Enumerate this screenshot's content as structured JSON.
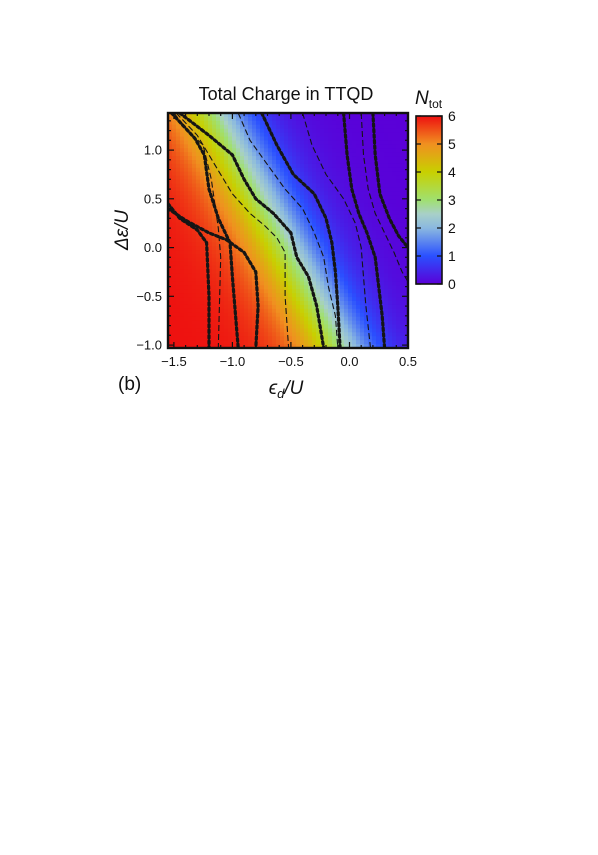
{
  "chart_data": {
    "type": "heatmap",
    "title": "Total Charge  in  TTQD",
    "panel_label": "(b)",
    "xlabel": "ϵd/U",
    "xlabel_main": "ϵ",
    "xlabel_sub": "d",
    "xlabel_tail": "/U",
    "ylabel": "Δε/U",
    "xlim": [
      -1.55,
      0.5
    ],
    "ylim": [
      -1.03,
      1.38
    ],
    "x_ticks": [
      -1.5,
      -1.0,
      -0.5,
      0.0,
      0.5
    ],
    "x_tick_labels": [
      "−1.5",
      "−1.0",
      "−0.5",
      "0.0",
      "0.5"
    ],
    "y_ticks": [
      -1.0,
      -0.5,
      0.0,
      0.5,
      1.0
    ],
    "y_tick_labels": [
      "−1.0",
      "−0.5",
      "0.0",
      "0.5",
      "1.0"
    ],
    "colorbar": {
      "label": "Ntot",
      "label_main": "N",
      "label_sub": "tot",
      "range": [
        0,
        6
      ],
      "ticks": [
        0,
        1,
        2,
        3,
        4,
        5,
        6
      ],
      "tick_labels": [
        "0",
        "1",
        "2",
        "3",
        "4",
        "5",
        "6"
      ]
    },
    "colors": {
      "0": "#5a00d8",
      "1": "#2a50ff",
      "2": "#8ab8e0",
      "2.5": "#a8d0c8",
      "3": "#a0e070",
      "4": "#c8d000",
      "5": "#f09020",
      "6": "#ee1010"
    },
    "contours": [
      {
        "level": 5.5,
        "style": "thick",
        "points": [
          [
            -1.55,
            0.45
          ],
          [
            -1.45,
            0.3
          ],
          [
            -1.3,
            0.18
          ],
          [
            -1.22,
            0.05
          ],
          [
            -1.2,
            -0.5
          ],
          [
            -1.2,
            -1.03
          ]
        ]
      },
      {
        "level": 5.5,
        "style": "thick",
        "points": [
          [
            -1.52,
            1.38
          ],
          [
            -1.42,
            1.25
          ],
          [
            -1.32,
            1.12
          ],
          [
            -1.24,
            0.95
          ],
          [
            -1.2,
            0.6
          ],
          [
            -1.12,
            0.3
          ],
          [
            -1.02,
            0.05
          ],
          [
            -1.0,
            -0.3
          ],
          [
            -0.95,
            -1.03
          ]
        ]
      },
      {
        "level": 5.0,
        "style": "thin",
        "points": [
          [
            -1.5,
            1.38
          ],
          [
            -1.38,
            1.2
          ],
          [
            -1.25,
            1.05
          ],
          [
            -1.18,
            0.7
          ],
          [
            -1.12,
            0.2
          ],
          [
            -1.1,
            -0.1
          ],
          [
            -1.12,
            -1.03
          ]
        ]
      },
      {
        "level": 4.5,
        "style": "thick",
        "points": [
          [
            -1.55,
            0.4
          ],
          [
            -1.4,
            0.28
          ],
          [
            -1.2,
            0.15
          ],
          [
            -1.05,
            0.08
          ],
          [
            -0.9,
            -0.05
          ],
          [
            -0.8,
            -0.25
          ],
          [
            -0.78,
            -0.6
          ],
          [
            -0.8,
            -1.03
          ]
        ]
      },
      {
        "level": 4.0,
        "style": "thin",
        "points": [
          [
            -1.48,
            1.38
          ],
          [
            -1.3,
            1.15
          ],
          [
            -1.15,
            0.85
          ],
          [
            -1.0,
            0.55
          ],
          [
            -0.85,
            0.35
          ],
          [
            -0.72,
            0.22
          ],
          [
            -0.62,
            0.1
          ],
          [
            -0.55,
            -0.05
          ],
          [
            -0.55,
            -0.5
          ],
          [
            -0.52,
            -1.03
          ]
        ]
      },
      {
        "level": 3.5,
        "style": "thick",
        "points": [
          [
            -1.45,
            1.38
          ],
          [
            -1.2,
            1.15
          ],
          [
            -1.0,
            0.95
          ],
          [
            -0.9,
            0.7
          ],
          [
            -0.8,
            0.5
          ],
          [
            -0.65,
            0.35
          ],
          [
            -0.5,
            0.15
          ],
          [
            -0.45,
            -0.1
          ],
          [
            -0.35,
            -0.3
          ],
          [
            -0.28,
            -0.6
          ],
          [
            -0.22,
            -1.03
          ]
        ]
      },
      {
        "level": 3.0,
        "style": "thin",
        "points": [
          [
            -0.95,
            1.38
          ],
          [
            -0.85,
            1.1
          ],
          [
            -0.7,
            0.85
          ],
          [
            -0.55,
            0.6
          ],
          [
            -0.4,
            0.4
          ],
          [
            -0.3,
            0.15
          ],
          [
            -0.22,
            -0.1
          ],
          [
            -0.18,
            -0.4
          ],
          [
            -0.12,
            -0.7
          ],
          [
            -0.1,
            -1.03
          ]
        ]
      },
      {
        "level": 2.5,
        "style": "thick",
        "points": [
          [
            -0.75,
            1.38
          ],
          [
            -0.62,
            1.05
          ],
          [
            -0.48,
            0.75
          ],
          [
            -0.3,
            0.55
          ],
          [
            -0.2,
            0.3
          ],
          [
            -0.15,
            0.05
          ],
          [
            -0.12,
            -0.25
          ],
          [
            -0.1,
            -0.6
          ],
          [
            -0.08,
            -1.03
          ]
        ]
      },
      {
        "level": 2.0,
        "style": "thin",
        "points": [
          [
            -0.4,
            1.38
          ],
          [
            -0.32,
            1.05
          ],
          [
            -0.2,
            0.75
          ],
          [
            -0.05,
            0.5
          ],
          [
            0.05,
            0.25
          ],
          [
            0.1,
            0.0
          ],
          [
            0.12,
            -0.3
          ],
          [
            0.14,
            -0.6
          ],
          [
            0.18,
            -1.03
          ]
        ]
      },
      {
        "level": 1.5,
        "style": "thick",
        "points": [
          [
            -0.05,
            1.38
          ],
          [
            -0.02,
            0.95
          ],
          [
            0.02,
            0.6
          ],
          [
            0.08,
            0.35
          ],
          [
            0.15,
            0.15
          ],
          [
            0.22,
            -0.1
          ],
          [
            0.25,
            -0.4
          ],
          [
            0.28,
            -0.7
          ],
          [
            0.3,
            -1.03
          ]
        ]
      },
      {
        "level": 1.0,
        "style": "thin",
        "points": [
          [
            0.1,
            1.38
          ],
          [
            0.12,
            0.95
          ],
          [
            0.16,
            0.6
          ],
          [
            0.22,
            0.35
          ],
          [
            0.3,
            0.15
          ],
          [
            0.38,
            -0.05
          ],
          [
            0.45,
            -0.25
          ],
          [
            0.5,
            -0.35
          ]
        ]
      },
      {
        "level": 0.5,
        "style": "thick",
        "points": [
          [
            0.2,
            1.38
          ],
          [
            0.22,
            0.95
          ],
          [
            0.26,
            0.55
          ],
          [
            0.34,
            0.3
          ],
          [
            0.42,
            0.12
          ],
          [
            0.5,
            0.0
          ]
        ]
      }
    ]
  }
}
